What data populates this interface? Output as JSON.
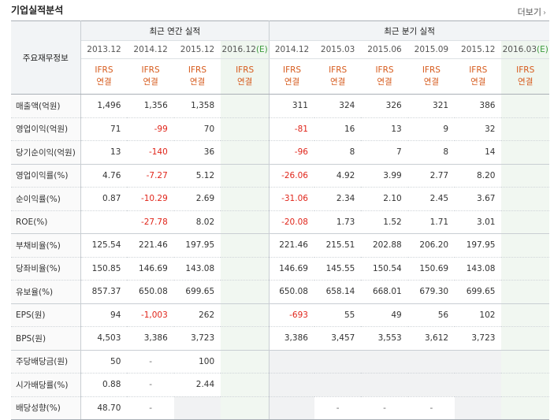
{
  "title": "기업실적분석",
  "more_label": "더보기",
  "more_arrow": "›",
  "row_header_label": "주요재무정보",
  "annual_label": "최근 연간 실적",
  "quarter_label": "최근 분기 실적",
  "estimate_mark": "(E)",
  "annual_periods": [
    "2013.12",
    "2014.12",
    "2015.12",
    "2016.12"
  ],
  "quarter_periods": [
    "2014.12",
    "2015.03",
    "2015.06",
    "2015.09",
    "2015.12",
    "2016.03"
  ],
  "ifrs_top": "IFRS",
  "ifrs_bottom": "연결",
  "rows": [
    {
      "label": "매출액(억원)",
      "vals": [
        "1,496",
        "1,356",
        "1,358",
        "",
        "311",
        "324",
        "326",
        "321",
        "386",
        ""
      ]
    },
    {
      "label": "영업이익(억원)",
      "vals": [
        "71",
        "-99",
        "70",
        "",
        "-81",
        "16",
        "13",
        "9",
        "32",
        ""
      ]
    },
    {
      "label": "당기순이익(억원)",
      "vals": [
        "13",
        "-140",
        "36",
        "",
        "-96",
        "8",
        "7",
        "8",
        "14",
        ""
      ]
    },
    {
      "label": "영업이익률(%)",
      "vals": [
        "4.76",
        "-7.27",
        "5.12",
        "",
        "-26.06",
        "4.92",
        "3.99",
        "2.77",
        "8.20",
        ""
      ]
    },
    {
      "label": "순이익률(%)",
      "vals": [
        "0.87",
        "-10.29",
        "2.69",
        "",
        "-31.06",
        "2.34",
        "2.10",
        "2.45",
        "3.67",
        ""
      ]
    },
    {
      "label": "ROE(%)",
      "vals": [
        "",
        "-27.78",
        "8.02",
        "",
        "-20.08",
        "1.73",
        "1.52",
        "1.71",
        "3.01",
        ""
      ]
    },
    {
      "label": "부채비율(%)",
      "vals": [
        "125.54",
        "221.46",
        "197.95",
        "",
        "221.46",
        "215.51",
        "202.88",
        "206.20",
        "197.95",
        ""
      ]
    },
    {
      "label": "당좌비율(%)",
      "vals": [
        "150.85",
        "146.69",
        "143.08",
        "",
        "146.69",
        "145.55",
        "150.54",
        "150.69",
        "143.08",
        ""
      ]
    },
    {
      "label": "유보율(%)",
      "vals": [
        "857.37",
        "650.08",
        "699.65",
        "",
        "650.08",
        "658.14",
        "668.01",
        "679.30",
        "699.65",
        ""
      ]
    },
    {
      "label": "EPS(원)",
      "vals": [
        "94",
        "-1,003",
        "262",
        "",
        "-693",
        "55",
        "49",
        "56",
        "102",
        ""
      ]
    },
    {
      "label": "BPS(원)",
      "vals": [
        "4,503",
        "3,386",
        "3,723",
        "",
        "3,386",
        "3,457",
        "3,553",
        "3,612",
        "3,723",
        ""
      ]
    },
    {
      "label": "주당배당금(원)",
      "vals": [
        "50",
        "-",
        "100",
        "",
        "",
        "",
        "",
        "",
        "",
        ""
      ]
    },
    {
      "label": "시가배당률(%)",
      "vals": [
        "0.88",
        "-",
        "2.44",
        "",
        "",
        "",
        "",
        "",
        "",
        ""
      ]
    },
    {
      "label": "배당성향(%)",
      "vals": [
        "48.70",
        "-",
        "",
        "",
        "",
        "-",
        "-",
        "-",
        "",
        ""
      ]
    }
  ]
}
